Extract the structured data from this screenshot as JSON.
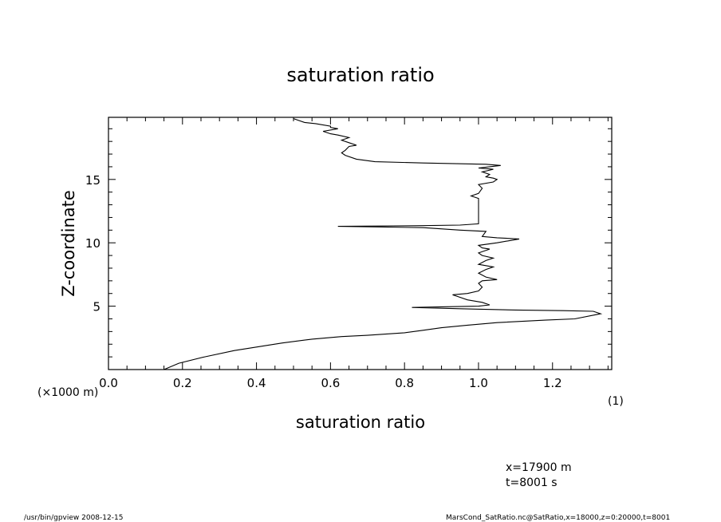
{
  "chart_data": {
    "type": "line",
    "title": "saturation ratio",
    "xlabel": "saturation ratio",
    "ylabel": "Z-coordinate",
    "x_unit": "(1)",
    "y_unit": "(×1000 m)",
    "xlim": [
      0.0,
      1.36
    ],
    "ylim": [
      0.0,
      19.9
    ],
    "xticks": [
      "0.0",
      "0.2",
      "0.4",
      "0.6",
      "0.8",
      "1.0",
      "1.2"
    ],
    "yticks": [
      "5",
      "10",
      "15"
    ],
    "grid": false,
    "series": [
      {
        "points": [
          [
            0.15,
            0.0
          ],
          [
            0.19,
            0.5
          ],
          [
            0.26,
            1.0
          ],
          [
            0.34,
            1.5
          ],
          [
            0.47,
            2.1
          ],
          [
            0.55,
            2.4
          ],
          [
            0.63,
            2.6
          ],
          [
            0.7,
            2.7
          ],
          [
            0.8,
            2.9
          ],
          [
            0.85,
            3.1
          ],
          [
            0.9,
            3.3
          ],
          [
            0.97,
            3.5
          ],
          [
            1.05,
            3.7
          ],
          [
            1.18,
            3.9
          ],
          [
            1.26,
            4.0
          ],
          [
            1.33,
            4.4
          ],
          [
            1.31,
            4.6
          ],
          [
            1.23,
            4.65
          ],
          [
            1.1,
            4.7
          ],
          [
            0.95,
            4.8
          ],
          [
            0.82,
            4.9
          ],
          [
            0.9,
            4.95
          ],
          [
            1.0,
            5.0
          ],
          [
            1.03,
            5.1
          ],
          [
            1.01,
            5.3
          ],
          [
            0.97,
            5.5
          ],
          [
            0.94,
            5.8
          ],
          [
            0.93,
            5.9
          ],
          [
            0.97,
            6.0
          ],
          [
            1.0,
            6.2
          ],
          [
            1.01,
            6.5
          ],
          [
            1.0,
            6.8
          ],
          [
            1.01,
            7.0
          ],
          [
            1.05,
            7.1
          ],
          [
            1.02,
            7.3
          ],
          [
            1.0,
            7.6
          ],
          [
            1.02,
            7.9
          ],
          [
            1.04,
            8.1
          ],
          [
            1.0,
            8.3
          ],
          [
            1.02,
            8.6
          ],
          [
            1.04,
            8.8
          ],
          [
            1.01,
            9.0
          ],
          [
            1.0,
            9.2
          ],
          [
            1.03,
            9.5
          ],
          [
            1.01,
            9.6
          ],
          [
            1.0,
            9.8
          ],
          [
            1.05,
            10.0
          ],
          [
            1.11,
            10.3
          ],
          [
            1.05,
            10.4
          ],
          [
            1.01,
            10.5
          ],
          [
            1.02,
            10.9
          ],
          [
            0.95,
            11.0
          ],
          [
            0.85,
            11.2
          ],
          [
            0.62,
            11.3
          ],
          [
            0.83,
            11.35
          ],
          [
            0.95,
            11.4
          ],
          [
            1.0,
            11.5
          ],
          [
            1.0,
            11.9
          ],
          [
            1.0,
            12.3
          ],
          [
            1.0,
            12.8
          ],
          [
            1.0,
            13.2
          ],
          [
            1.0,
            13.5
          ],
          [
            0.98,
            13.7
          ],
          [
            1.0,
            13.9
          ],
          [
            1.01,
            14.3
          ],
          [
            1.0,
            14.6
          ],
          [
            1.04,
            14.8
          ],
          [
            1.05,
            15.0
          ],
          [
            1.04,
            15.1
          ],
          [
            1.02,
            15.2
          ],
          [
            1.03,
            15.4
          ],
          [
            1.01,
            15.6
          ],
          [
            1.04,
            15.8
          ],
          [
            1.0,
            15.9
          ],
          [
            1.03,
            16.0
          ],
          [
            1.06,
            16.1
          ],
          [
            1.02,
            16.2
          ],
          [
            0.85,
            16.3
          ],
          [
            0.72,
            16.4
          ],
          [
            0.67,
            16.6
          ],
          [
            0.64,
            16.9
          ],
          [
            0.63,
            17.1
          ],
          [
            0.64,
            17.3
          ],
          [
            0.65,
            17.6
          ],
          [
            0.67,
            17.7
          ],
          [
            0.65,
            17.9
          ],
          [
            0.63,
            18.1
          ],
          [
            0.65,
            18.3
          ],
          [
            0.62,
            18.5
          ],
          [
            0.6,
            18.6
          ],
          [
            0.58,
            18.8
          ],
          [
            0.62,
            19.0
          ],
          [
            0.6,
            19.1
          ],
          [
            0.6,
            19.2
          ],
          [
            0.56,
            19.4
          ],
          [
            0.53,
            19.5
          ],
          [
            0.5,
            19.8
          ]
        ]
      }
    ]
  },
  "info": {
    "position_label": "x=17900  m",
    "time_label": "t=8001  s"
  },
  "footer": {
    "left": "/usr/bin/gpview   2008-12-15",
    "right": "MarsCond_SatRatio.nc@SatRatio,x=18000,z=0:20000,t=8001"
  }
}
